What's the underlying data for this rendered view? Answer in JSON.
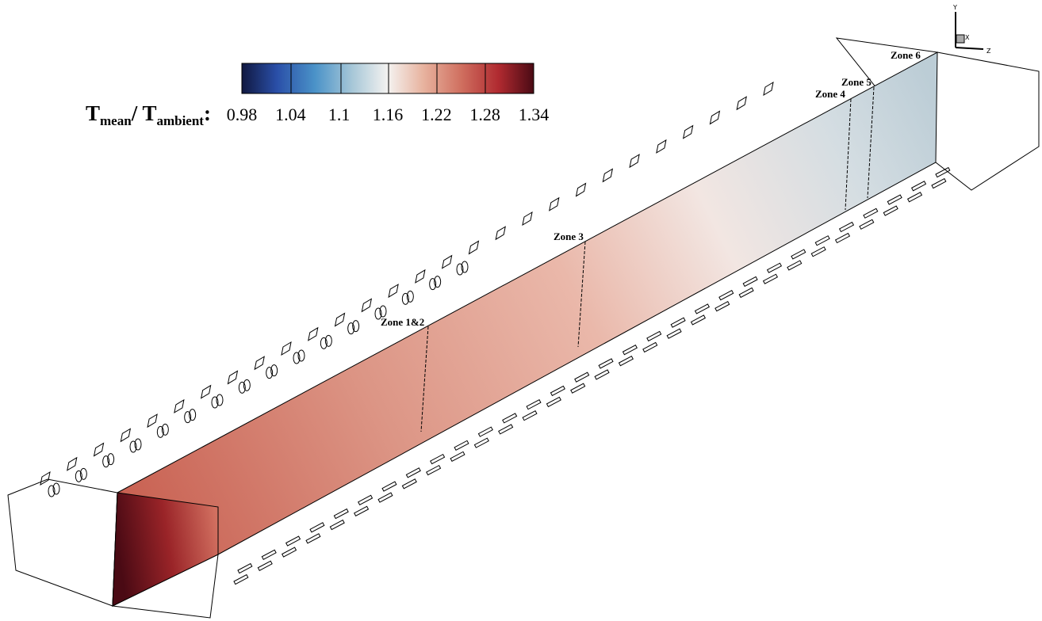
{
  "colorbar": {
    "label": {
      "symbol": "T",
      "sub1": "mean",
      "mid": "/ T",
      "sub2": "ambient",
      "end": ":"
    },
    "ticks": [
      "0.98",
      "1.04",
      "1.1",
      "1.16",
      "1.22",
      "1.28",
      "1.34"
    ]
  },
  "zones": [
    "Zone 1&2",
    "Zone 3",
    "Zone 4",
    "Zone 5",
    "Zone 6"
  ],
  "axes": [
    "Y",
    "X",
    "Z"
  ]
}
